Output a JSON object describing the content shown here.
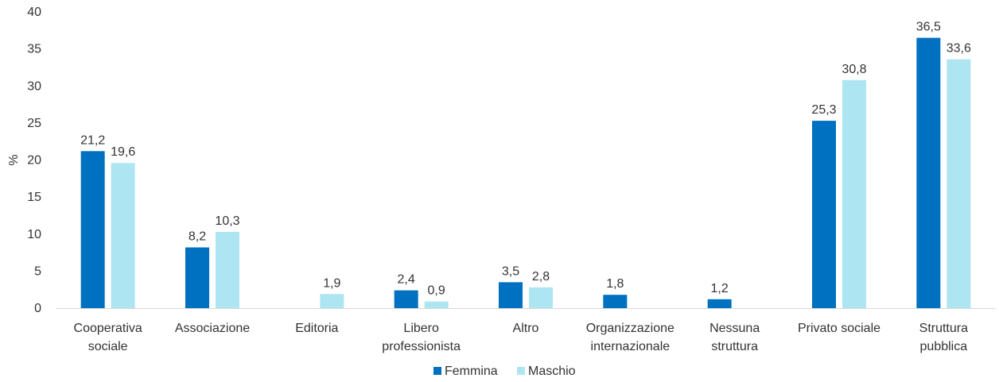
{
  "chart_data": {
    "type": "bar",
    "title": "",
    "xlabel": "",
    "ylabel": "%",
    "ylim": [
      0,
      40
    ],
    "yticks": [
      0,
      5,
      10,
      15,
      20,
      25,
      30,
      35,
      40
    ],
    "grid": false,
    "legend_position": "bottom",
    "categories": [
      [
        "Cooperativa",
        "sociale"
      ],
      [
        "Associazione"
      ],
      [
        "Editoria"
      ],
      [
        "Libero",
        "professionista"
      ],
      [
        "Altro"
      ],
      [
        "Organizzazione",
        "internazionale"
      ],
      [
        "Nessuna",
        "struttura"
      ],
      [
        "Privato sociale"
      ],
      [
        "Struttura",
        "pubblica"
      ]
    ],
    "series": [
      {
        "name": "Femmina",
        "color": "#0070c0",
        "values": [
          21.2,
          8.2,
          null,
          2.4,
          3.5,
          1.8,
          1.2,
          25.3,
          36.5
        ],
        "labels": [
          "21,2",
          "8,2",
          "",
          "2,4",
          "3,5",
          "1,8",
          "1,2",
          "25,3",
          "36,5"
        ]
      },
      {
        "name": "Maschio",
        "color": "#aee5f2",
        "values": [
          19.6,
          10.3,
          1.9,
          0.9,
          2.8,
          null,
          null,
          30.8,
          33.6
        ],
        "labels": [
          "19,6",
          "10,3",
          "1,9",
          "0,9",
          "2,8",
          "",
          "",
          "30,8",
          "33,6"
        ]
      }
    ]
  }
}
